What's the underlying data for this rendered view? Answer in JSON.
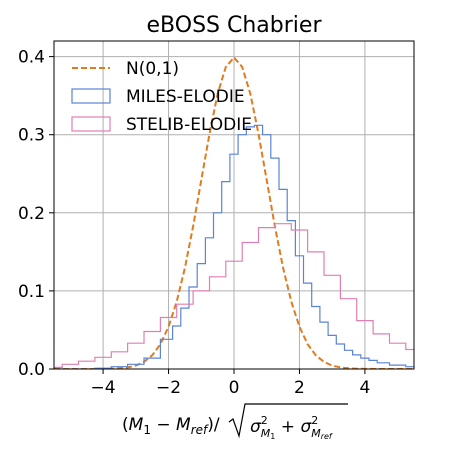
{
  "chart_data": {
    "type": "line",
    "title": "eBOSS Chabrier",
    "xlabel": "",
    "ylabel": "",
    "xlim": [
      -5.5,
      5.5
    ],
    "ylim": [
      0.0,
      0.42
    ],
    "xticks": [
      -4,
      -2,
      0,
      2,
      4
    ],
    "xtick_labels": [
      "−4",
      "−2",
      "0",
      "2",
      "4"
    ],
    "yticks": [
      0.0,
      0.1,
      0.2,
      0.3,
      0.4
    ],
    "ytick_labels": [
      "0.0",
      "0.1",
      "0.2",
      "0.3",
      "0.4"
    ],
    "grid": true,
    "legend_position": "top-left",
    "series": [
      {
        "name": "N(0,1)",
        "kind": "curve",
        "color": "#e07b20",
        "dash": true,
        "x": [
          -5.5,
          -5.0,
          -4.5,
          -4.0,
          -3.75,
          -3.5,
          -3.25,
          -3.0,
          -2.75,
          -2.5,
          -2.25,
          -2.0,
          -1.75,
          -1.5,
          -1.25,
          -1.0,
          -0.75,
          -0.5,
          -0.25,
          0.0,
          0.25,
          0.5,
          0.75,
          1.0,
          1.25,
          1.5,
          1.75,
          2.0,
          2.25,
          2.5,
          2.75,
          3.0,
          3.25,
          3.5,
          3.75,
          4.0,
          4.5,
          5.0,
          5.5
        ],
        "y": [
          0.0,
          0.0,
          0.0,
          0.0001,
          0.0004,
          0.0009,
          0.002,
          0.0044,
          0.0091,
          0.0175,
          0.0317,
          0.054,
          0.0863,
          0.1295,
          0.1826,
          0.242,
          0.3011,
          0.3521,
          0.3867,
          0.3989,
          0.3867,
          0.3521,
          0.3011,
          0.242,
          0.1826,
          0.1295,
          0.0863,
          0.054,
          0.0317,
          0.0175,
          0.0091,
          0.0044,
          0.002,
          0.0009,
          0.0004,
          0.0001,
          0.0,
          0.0,
          0.0
        ]
      },
      {
        "name": "MILES-ELODIE",
        "kind": "step",
        "color": "#5b84d6",
        "x": [
          -5.5,
          -5.0,
          -4.5,
          -4.0,
          -3.5,
          -3.0,
          -2.5,
          -2.0,
          -1.75,
          -1.5,
          -1.25,
          -1.0,
          -0.75,
          -0.5,
          -0.25,
          0.0,
          0.25,
          0.5,
          0.75,
          1.0,
          1.25,
          1.5,
          1.75,
          2.0,
          2.25,
          2.5,
          2.75,
          3.0,
          3.25,
          3.5,
          3.75,
          4.0,
          4.25,
          4.5,
          5.0,
          5.5
        ],
        "y": [
          0.0,
          0.0,
          0.0,
          0.001,
          0.003,
          0.006,
          0.014,
          0.038,
          0.055,
          0.078,
          0.105,
          0.135,
          0.168,
          0.2,
          0.24,
          0.275,
          0.3,
          0.31,
          0.312,
          0.3,
          0.27,
          0.23,
          0.19,
          0.145,
          0.11,
          0.08,
          0.06,
          0.043,
          0.032,
          0.024,
          0.018,
          0.014,
          0.011,
          0.008,
          0.005,
          0.003
        ]
      },
      {
        "name": "STELIB-ELODIE",
        "kind": "step",
        "color": "#e17fb2",
        "x": [
          -5.5,
          -5.0,
          -4.5,
          -4.0,
          -3.5,
          -3.0,
          -2.5,
          -2.0,
          -1.5,
          -1.0,
          -0.5,
          0.0,
          0.5,
          1.0,
          1.5,
          2.0,
          2.5,
          3.0,
          3.5,
          4.0,
          4.5,
          5.0,
          5.5
        ],
        "y": [
          0.002,
          0.006,
          0.01,
          0.015,
          0.022,
          0.033,
          0.048,
          0.066,
          0.083,
          0.1,
          0.118,
          0.138,
          0.162,
          0.181,
          0.186,
          0.178,
          0.15,
          0.12,
          0.09,
          0.062,
          0.045,
          0.033,
          0.025
        ]
      }
    ]
  }
}
